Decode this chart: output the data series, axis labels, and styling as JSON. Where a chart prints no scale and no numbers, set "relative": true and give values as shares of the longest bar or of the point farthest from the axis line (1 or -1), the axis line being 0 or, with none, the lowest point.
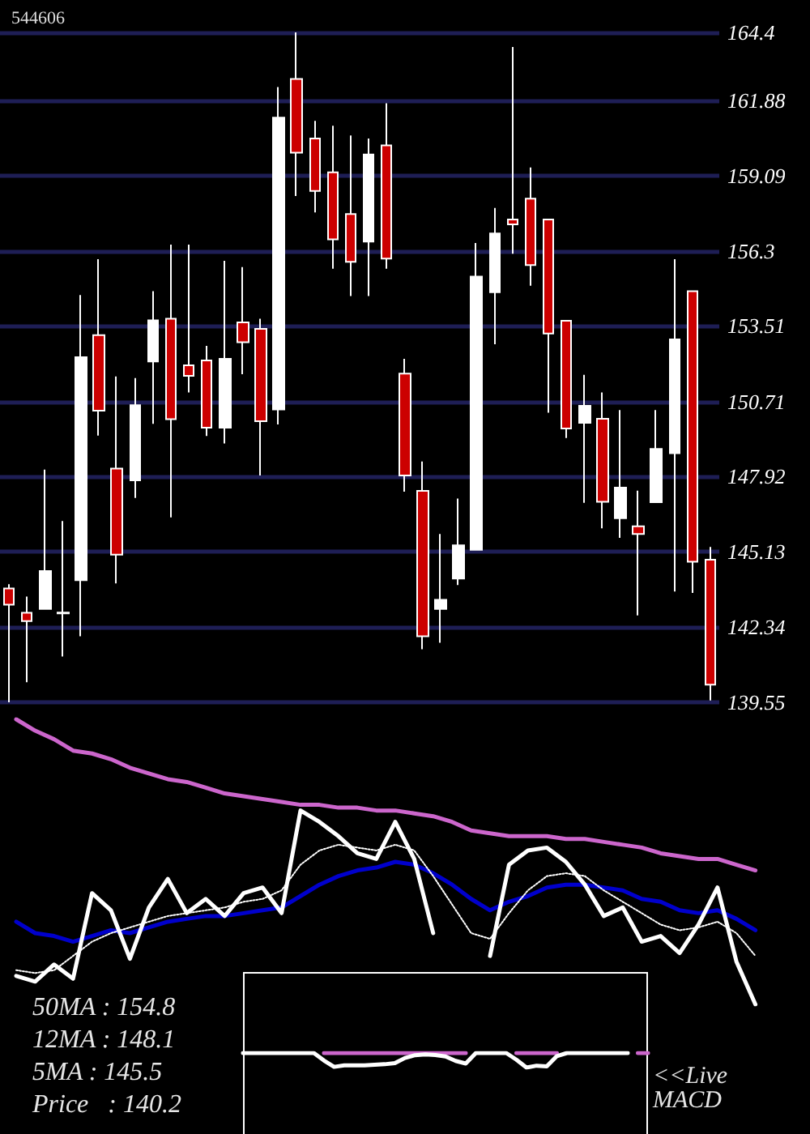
{
  "chart_data": [
    {
      "type": "candlestick",
      "title": "544606",
      "categories": [
        null,
        null,
        null,
        null,
        null,
        null,
        null,
        null,
        null,
        null,
        null,
        null,
        null,
        null,
        null,
        null,
        null,
        null,
        null,
        null,
        null,
        null,
        null,
        null,
        null,
        null,
        null,
        null,
        null,
        null,
        null,
        null,
        null,
        null,
        null,
        null,
        null,
        null,
        null,
        null
      ],
      "ohlc": [
        [
          143.77,
          143.93,
          139.55,
          143.17
        ],
        [
          142.87,
          143.47,
          140.29,
          142.56
        ],
        [
          143.01,
          148.18,
          143.01,
          144.42
        ],
        [
          142.88,
          146.27,
          141.25,
          142.85
        ],
        [
          144.08,
          154.66,
          142.0,
          152.35
        ],
        [
          153.17,
          155.99,
          149.44,
          150.37
        ],
        [
          148.22,
          151.64,
          143.96,
          145.03
        ],
        [
          147.78,
          151.58,
          147.13,
          150.57
        ],
        [
          152.19,
          154.8,
          149.88,
          153.72
        ],
        [
          153.78,
          156.53,
          146.41,
          150.05
        ],
        [
          152.05,
          156.53,
          151.04,
          151.66
        ],
        [
          152.23,
          152.77,
          149.43,
          149.74
        ],
        [
          149.74,
          155.93,
          149.15,
          152.29
        ],
        [
          153.64,
          155.69,
          151.72,
          152.91
        ],
        [
          153.4,
          153.78,
          147.96,
          149.98
        ],
        [
          150.41,
          162.37,
          149.86,
          161.24
        ],
        [
          162.67,
          164.4,
          158.33,
          159.94
        ],
        [
          160.46,
          161.12,
          157.72,
          158.52
        ],
        [
          159.21,
          160.94,
          155.63,
          156.72
        ],
        [
          157.66,
          160.58,
          154.62,
          155.89
        ],
        [
          156.64,
          160.46,
          154.62,
          159.87
        ],
        [
          160.21,
          161.77,
          155.63,
          156.01
        ],
        [
          151.74,
          152.29,
          147.36,
          147.96
        ],
        [
          147.39,
          148.48,
          141.52,
          142.0
        ],
        [
          143.01,
          145.79,
          141.76,
          143.35
        ],
        [
          144.14,
          147.11,
          143.9,
          145.37
        ],
        [
          145.21,
          156.59,
          145.21,
          155.34
        ],
        [
          154.76,
          157.89,
          152.83,
          156.94
        ],
        [
          157.46,
          163.86,
          156.19,
          157.28
        ],
        [
          158.23,
          159.39,
          155.0,
          155.77
        ],
        [
          157.46,
          157.46,
          150.29,
          153.23
        ],
        [
          153.7,
          153.7,
          149.35,
          149.71
        ],
        [
          149.92,
          151.7,
          146.95,
          150.55
        ],
        [
          150.07,
          151.04,
          146.0,
          146.99
        ],
        [
          146.38,
          150.39,
          145.65,
          147.51
        ],
        [
          146.08,
          147.4,
          142.77,
          145.79
        ],
        [
          146.97,
          150.39,
          146.97,
          148.95
        ],
        [
          148.79,
          155.99,
          143.66,
          153.01
        ],
        [
          154.8,
          154.8,
          143.61,
          144.76
        ],
        [
          144.84,
          145.31,
          139.62,
          140.2
        ]
      ],
      "colors": [
        "#cc0000",
        "#cc0000",
        "#ffffff",
        "#cc0000",
        "#ffffff",
        "#cc0000",
        "#cc0000",
        "#ffffff",
        "#ffffff",
        "#cc0000",
        "#cc0000",
        "#cc0000",
        "#ffffff",
        "#cc0000",
        "#cc0000",
        "#ffffff",
        "#cc0000",
        "#cc0000",
        "#cc0000",
        "#cc0000",
        "#ffffff",
        "#cc0000",
        "#cc0000",
        "#cc0000",
        "#ffffff",
        "#ffffff",
        "#ffffff",
        "#ffffff",
        "#cc0000",
        "#cc0000",
        "#cc0000",
        "#cc0000",
        "#ffffff",
        "#cc0000",
        "#ffffff",
        "#cc0000",
        "#ffffff",
        "#ffffff",
        "#cc0000",
        "#cc0000"
      ],
      "ylim": [
        139.55,
        164.4
      ],
      "yticks": [
        139.55,
        142.34,
        145.13,
        147.92,
        150.71,
        153.51,
        156.3,
        159.09,
        161.88,
        164.4
      ],
      "grid": "y",
      "tick_labels": "y"
    },
    {
      "type": "line",
      "relative": true,
      "marker": "none",
      "categories": [
        null,
        null,
        null,
        null,
        null,
        null,
        null,
        null,
        null,
        null,
        null,
        null,
        null,
        null,
        null,
        null,
        null,
        null,
        null,
        null,
        null,
        null,
        null,
        null,
        null,
        null,
        null,
        null,
        null,
        null,
        null,
        null,
        null,
        null,
        null,
        null,
        null,
        null,
        null,
        null
      ],
      "series": [
        {
          "color": "#cc66cc",
          "values": [
            1,
            0.96,
            0.93,
            0.89,
            0.88,
            0.86,
            0.83,
            0.81,
            0.79,
            0.78,
            0.76,
            0.74,
            0.73,
            0.72,
            0.71,
            0.7,
            0.7,
            0.69,
            0.69,
            0.68,
            0.68,
            0.67,
            0.66,
            0.64,
            0.61,
            0.6,
            0.59,
            0.59,
            0.59,
            0.58,
            0.58,
            0.57,
            0.56,
            0.55,
            0.53,
            0.52,
            0.51,
            0.51,
            0.49,
            0.47
          ]
        },
        {
          "color": "#0000cc",
          "values": [
            0.29,
            0.25,
            0.24,
            0.22,
            0.24,
            0.26,
            0.25,
            0.27,
            0.29,
            0.3,
            0.31,
            0.31,
            0.32,
            0.33,
            0.34,
            0.38,
            0.42,
            0.45,
            0.47,
            0.48,
            0.5,
            0.49,
            0.46,
            0.42,
            0.37,
            0.33,
            0.36,
            0.38,
            0.41,
            0.42,
            0.42,
            0.41,
            0.4,
            0.37,
            0.36,
            0.33,
            0.32,
            0.33,
            0.3,
            0.26
          ]
        },
        {
          "color": "#ffffff",
          "line_style": "dotted",
          "values": [
            0.12,
            0.11,
            0.12,
            0.17,
            0.22,
            0.25,
            0.27,
            0.29,
            0.31,
            0.32,
            0.33,
            0.34,
            0.36,
            0.37,
            0.4,
            0.49,
            0.54,
            0.56,
            0.55,
            0.54,
            0.56,
            0.54,
            0.45,
            0.35,
            0.25,
            0.23,
            0.32,
            0.4,
            0.45,
            0.46,
            0.45,
            0.4,
            0.36,
            0.32,
            0.28,
            0.26,
            0.27,
            0.29,
            0.25,
            0.17
          ]
        },
        {
          "color": "#ffffff",
          "values": [
            0.1,
            0.08,
            0.14,
            0.09,
            0.39,
            0.33,
            0.16,
            0.34,
            0.44,
            0.32,
            0.37,
            0.31,
            0.39,
            0.41,
            0.32,
            0.68,
            0.64,
            0.59,
            0.53,
            0.51,
            0.64,
            0.51,
            0.25,
            null,
            null,
            0.17,
            0.49,
            0.54,
            0.55,
            0.5,
            0.42,
            0.31,
            0.34,
            0.22,
            0.24,
            0.18,
            0.28,
            0.41,
            0.15,
            0
          ]
        }
      ],
      "annotations": [
        "50MA : 154.8",
        "12MA : 148.1",
        "5MA : 145.5",
        "Price   : 140.2"
      ]
    },
    {
      "type": "line",
      "relative": true,
      "marker": "none",
      "categories": [
        null,
        null,
        null,
        null,
        null,
        null,
        null,
        null,
        null,
        null,
        null,
        null,
        null,
        null,
        null,
        null,
        null,
        null,
        null,
        null,
        null,
        null,
        null,
        null,
        null,
        null,
        null,
        null,
        null,
        null,
        null,
        null,
        null,
        null,
        null,
        null,
        null,
        null,
        null,
        null,
        null
      ],
      "series": [
        {
          "color": "#cc66cc",
          "values": [
            null,
            null,
            null,
            null,
            null,
            null,
            null,
            null,
            1,
            1,
            1,
            1,
            1,
            1,
            1,
            1,
            1,
            1,
            1,
            1,
            1,
            1,
            1,
            null,
            null,
            null,
            null,
            1,
            1,
            1,
            1,
            1,
            null,
            null,
            null,
            null,
            null,
            null,
            null,
            1,
            1
          ]
        },
        {
          "color": "#ffffff",
          "values": [
            1,
            1,
            1,
            1,
            1,
            1,
            1,
            1,
            0.48,
            0.05,
            0.15,
            0.15,
            0.15,
            0.2,
            0.23,
            0.31,
            0.66,
            0.85,
            0.9,
            0.86,
            0.76,
            0.46,
            0.28,
            1,
            1,
            1,
            1,
            0.54,
            0,
            0.13,
            0.08,
            0.79,
            1,
            1,
            1,
            1,
            1,
            1,
            1,
            null,
            null
          ]
        }
      ],
      "annotations": [
        "<<Live MACD"
      ]
    }
  ]
}
